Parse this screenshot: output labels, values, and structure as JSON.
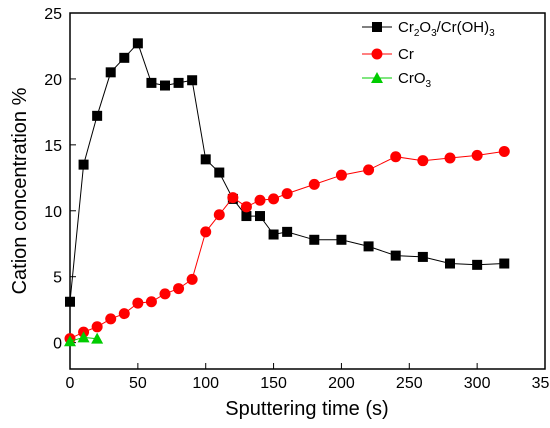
{
  "chart_data": {
    "type": "line",
    "title": "",
    "xlabel": "Sputtering time (s)",
    "ylabel": "Cation concentration %",
    "xlim": [
      0,
      350
    ],
    "ylim": [
      -2,
      25
    ],
    "xticks": [
      0,
      50,
      100,
      150,
      200,
      250,
      300,
      350
    ],
    "yticks": [
      0,
      5,
      10,
      15,
      20,
      25
    ],
    "grid": false,
    "legend_position": "top-right",
    "series": [
      {
        "name": "Cr2O3/Cr(OH)3",
        "name_parts": {
          "a": "Cr",
          "b": "2",
          "c": "O",
          "d": "3",
          "e": "/Cr(OH)",
          "f": "3"
        },
        "marker": "square",
        "color": "#000000",
        "x": [
          0,
          10,
          20,
          30,
          40,
          50,
          60,
          70,
          80,
          90,
          100,
          110,
          120,
          130,
          140,
          150,
          160,
          180,
          200,
          220,
          240,
          260,
          280,
          300,
          320
        ],
        "y": [
          3.1,
          13.5,
          17.2,
          20.5,
          21.6,
          22.7,
          19.7,
          19.5,
          19.7,
          19.9,
          13.9,
          12.9,
          10.9,
          9.6,
          9.6,
          8.2,
          8.4,
          7.8,
          7.8,
          7.3,
          6.6,
          6.5,
          6.0,
          5.9,
          6.0
        ]
      },
      {
        "name": "Cr",
        "marker": "circle",
        "color": "#ff0000",
        "x": [
          0,
          10,
          20,
          30,
          40,
          50,
          60,
          70,
          80,
          90,
          100,
          110,
          120,
          130,
          140,
          150,
          160,
          180,
          200,
          220,
          240,
          260,
          280,
          300,
          320
        ],
        "y": [
          0.3,
          0.8,
          1.2,
          1.8,
          2.2,
          3.0,
          3.1,
          3.7,
          4.1,
          4.8,
          8.4,
          9.7,
          11.0,
          10.3,
          10.8,
          10.9,
          11.3,
          12.0,
          12.7,
          13.1,
          14.1,
          13.8,
          14.0,
          14.2,
          14.5
        ]
      },
      {
        "name": "CrO3",
        "name_parts": {
          "a": "CrO",
          "b": "3"
        },
        "marker": "triangle",
        "color": "#00cc00",
        "x": [
          0,
          10,
          20
        ],
        "y": [
          0.1,
          0.4,
          0.3
        ]
      }
    ]
  }
}
